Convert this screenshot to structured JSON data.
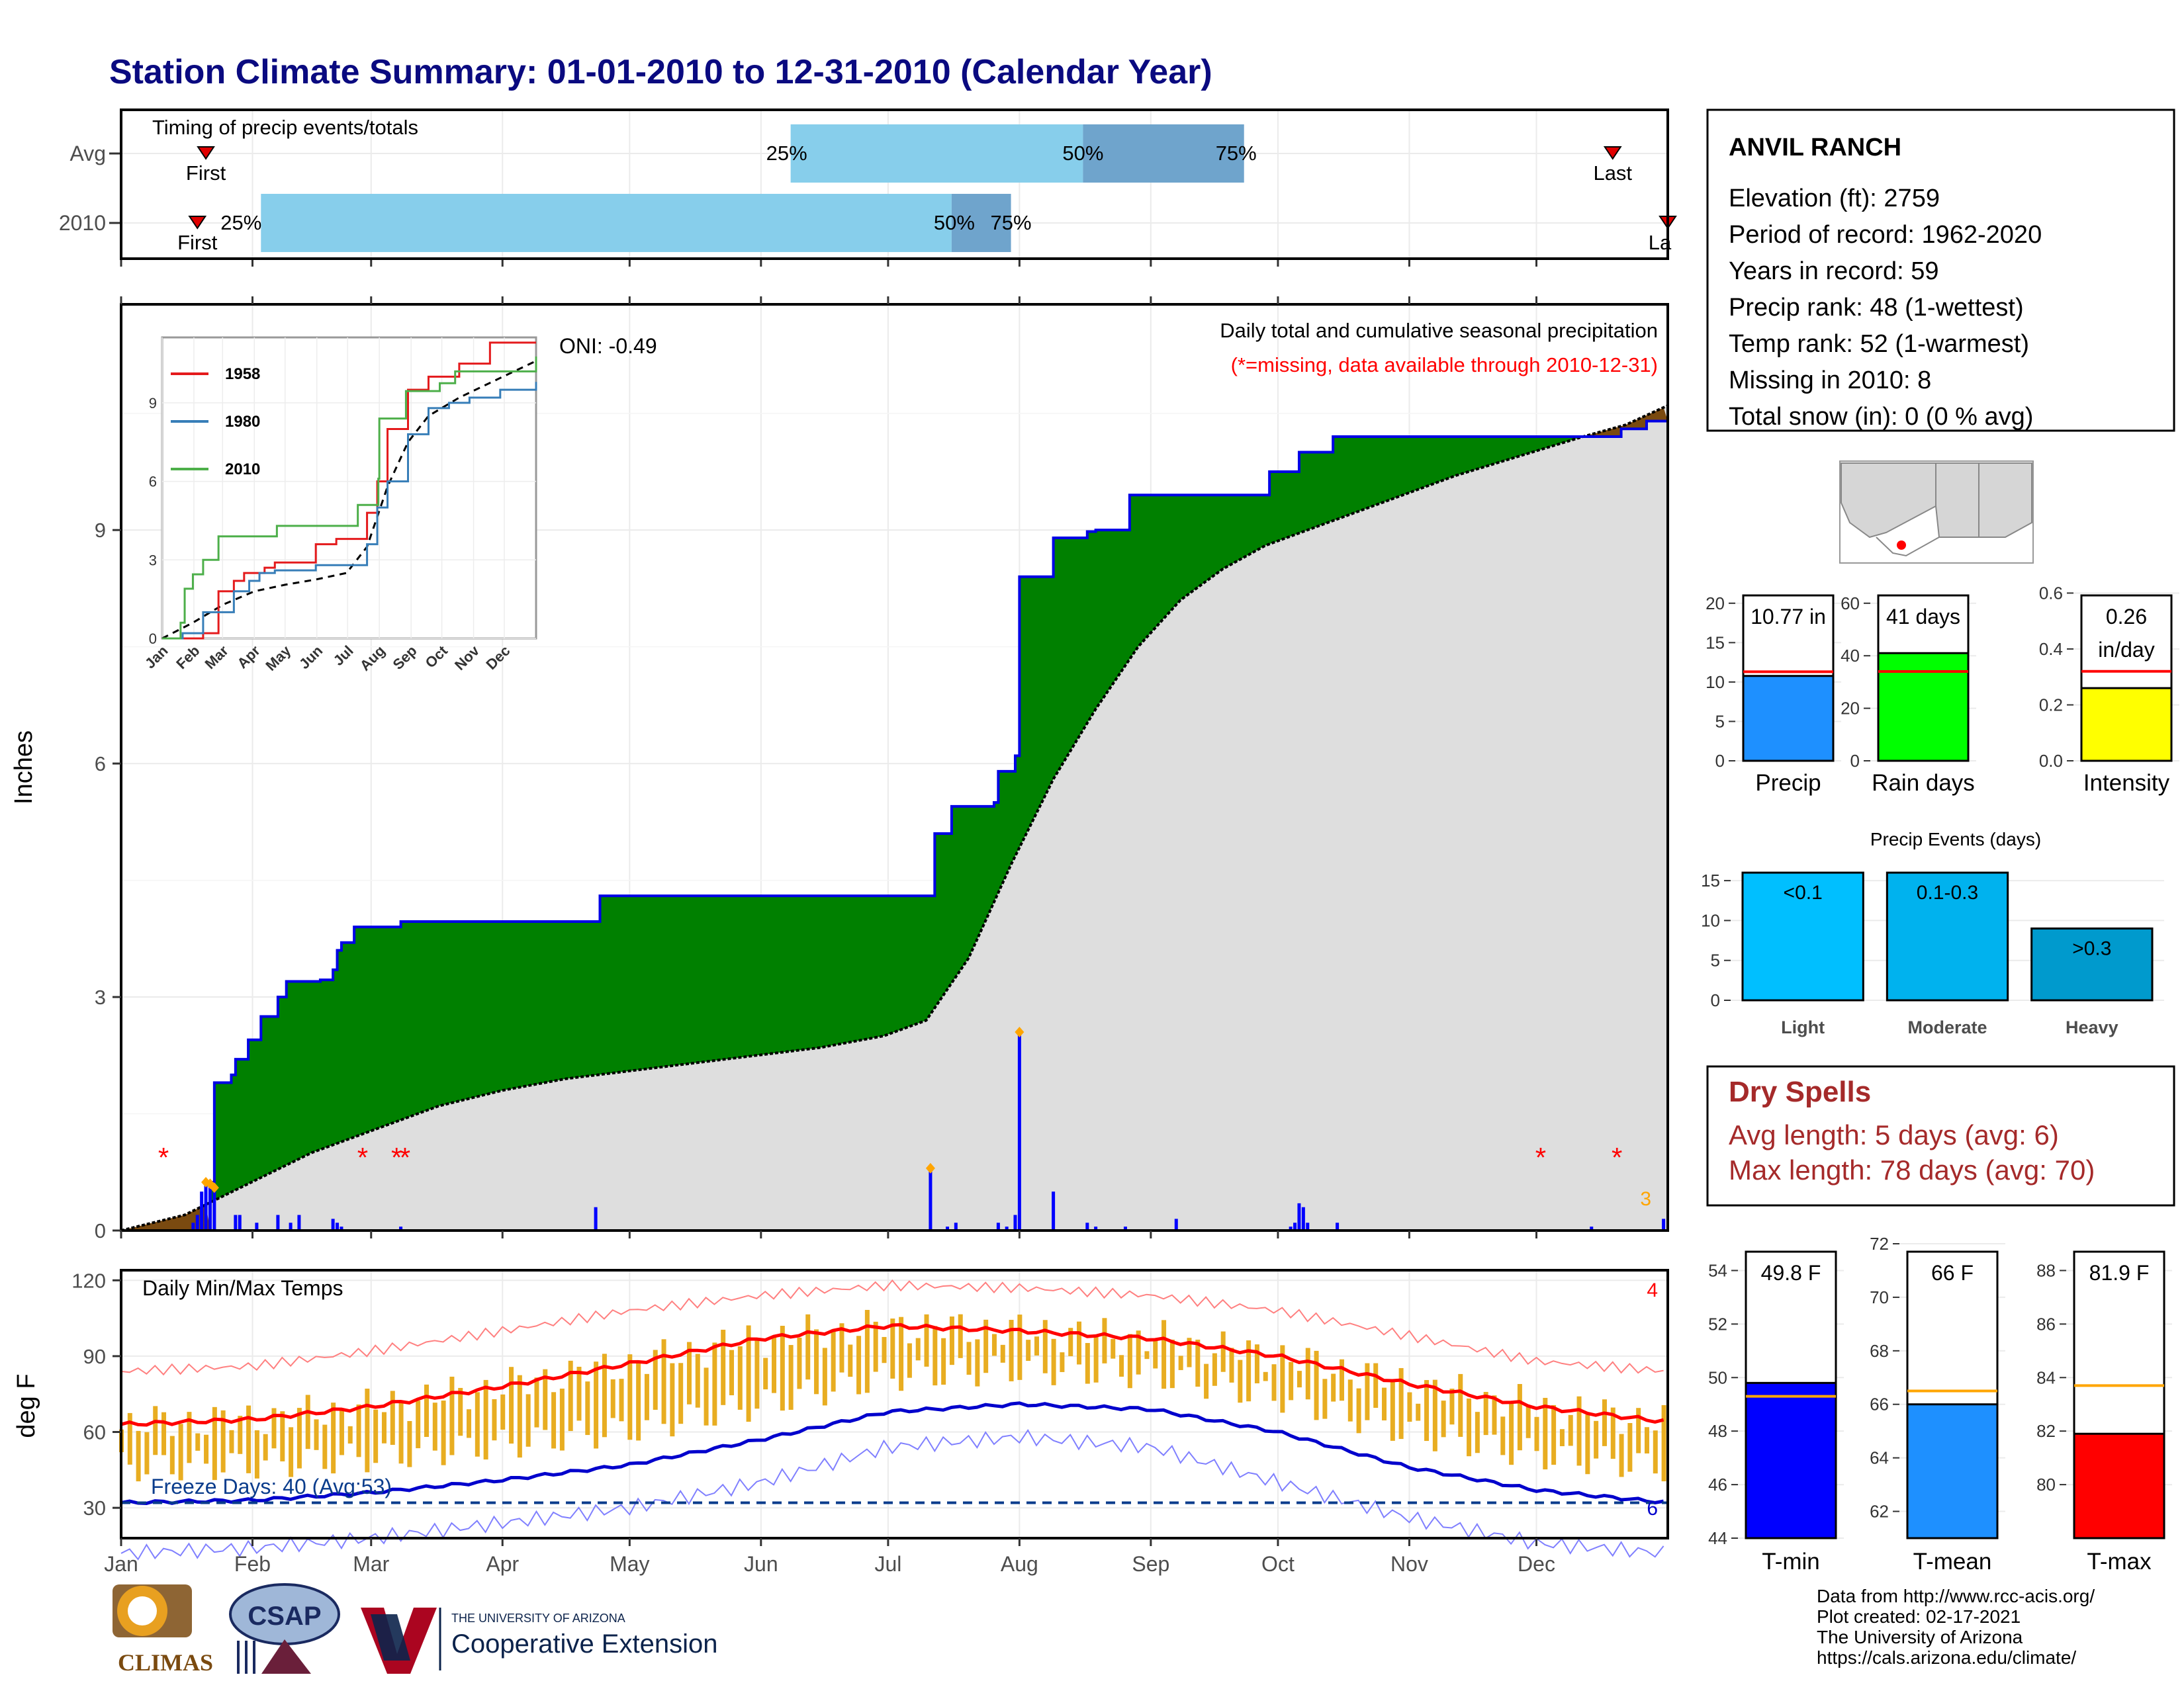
{
  "title": "Station Climate Summary: 01-01-2010 to 12-31-2010 (Calendar Year)",
  "colors": {
    "title": "#0a0a80",
    "cumulative_fill": "#008000",
    "cumulative_line": "#0000e6",
    "normal_fill": "#dedede",
    "deficit_fill": "#7a4a10",
    "daily_bar": "#0000ff",
    "timing_light": "#87ceeb",
    "timing_dark": "#6fa4cc",
    "temp_bar": "#e8ad21",
    "tmax_line": "#ff0000",
    "tmin_line": "#0000cc",
    "dry_spell_text": "#a52a2a"
  },
  "timing_panel": {
    "title": "Timing of precip events/totals",
    "rows": [
      {
        "label": "Avg",
        "first_doy": 20,
        "last_doy": 352,
        "p25_doy": 158,
        "p50_doy": 227,
        "p75_doy": 265,
        "labels": {
          "first": "First",
          "last": "Last",
          "p25": "25%",
          "p50": "50%",
          "p75": "75%"
        }
      },
      {
        "label": "2010",
        "first_doy": 18,
        "last_doy": 365,
        "p25_doy": 33,
        "p50_doy": 196,
        "p75_doy": 210,
        "labels": {
          "first": "First",
          "last": "La",
          "p25": "25%",
          "p50": "50%",
          "p75": "75%"
        }
      }
    ]
  },
  "precip_panel": {
    "ylabel": "Inches",
    "yticks": [
      0,
      3,
      6,
      9
    ],
    "ylim": [
      0,
      11.9
    ],
    "subtitle": "Daily total and cumulative seasonal precipitation",
    "missing_note": "(*=missing, data available through 2010-12-31)",
    "oni": "ONI: -0.49",
    "corner_count": "3",
    "cumulative_2010": [
      [
        0,
        0
      ],
      [
        18,
        0
      ],
      [
        21,
        0.62
      ],
      [
        22,
        1.9
      ],
      [
        26,
        2.0
      ],
      [
        27,
        2.2
      ],
      [
        30,
        2.45
      ],
      [
        33,
        2.75
      ],
      [
        37,
        3.0
      ],
      [
        39,
        3.2
      ],
      [
        47,
        3.22
      ],
      [
        50,
        3.35
      ],
      [
        51,
        3.6
      ],
      [
        52,
        3.7
      ],
      [
        55,
        3.9
      ],
      [
        62,
        3.9
      ],
      [
        66,
        3.97
      ],
      [
        112,
        3.97
      ],
      [
        113,
        4.3
      ],
      [
        191,
        4.3
      ],
      [
        192,
        5.1
      ],
      [
        196,
        5.45
      ],
      [
        206,
        5.5
      ],
      [
        207,
        5.9
      ],
      [
        211,
        6.1
      ],
      [
        212,
        8.4
      ],
      [
        219,
        8.4
      ],
      [
        220,
        8.9
      ],
      [
        228,
        8.98
      ],
      [
        230,
        9.0
      ],
      [
        237,
        9.0
      ],
      [
        238,
        9.45
      ],
      [
        270,
        9.45
      ],
      [
        271,
        9.75
      ],
      [
        278,
        10.0
      ],
      [
        286,
        10.2
      ],
      [
        350,
        10.2
      ],
      [
        354,
        10.3
      ],
      [
        360,
        10.4
      ],
      [
        365,
        10.77
      ]
    ],
    "normal_cumulative": [
      [
        0,
        0
      ],
      [
        15,
        0.2
      ],
      [
        30,
        0.6
      ],
      [
        45,
        1.0
      ],
      [
        60,
        1.3
      ],
      [
        75,
        1.6
      ],
      [
        90,
        1.8
      ],
      [
        105,
        1.95
      ],
      [
        120,
        2.05
      ],
      [
        135,
        2.15
      ],
      [
        150,
        2.25
      ],
      [
        165,
        2.35
      ],
      [
        180,
        2.5
      ],
      [
        190,
        2.7
      ],
      [
        200,
        3.5
      ],
      [
        210,
        4.7
      ],
      [
        220,
        5.8
      ],
      [
        230,
        6.7
      ],
      [
        240,
        7.5
      ],
      [
        250,
        8.1
      ],
      [
        260,
        8.5
      ],
      [
        270,
        8.8
      ],
      [
        285,
        9.1
      ],
      [
        300,
        9.4
      ],
      [
        315,
        9.7
      ],
      [
        330,
        9.95
      ],
      [
        345,
        10.2
      ],
      [
        355,
        10.35
      ],
      [
        365,
        10.6
      ]
    ],
    "daily_bars": [
      [
        17,
        0.1
      ],
      [
        18,
        0.2
      ],
      [
        19,
        0.5
      ],
      [
        20,
        0.62
      ],
      [
        21,
        0.6
      ],
      [
        22,
        0.55
      ],
      [
        27,
        0.2
      ],
      [
        28,
        0.2
      ],
      [
        32,
        0.1
      ],
      [
        37,
        0.2
      ],
      [
        40,
        0.1
      ],
      [
        42,
        0.2
      ],
      [
        50,
        0.15
      ],
      [
        51,
        0.1
      ],
      [
        52,
        0.05
      ],
      [
        66,
        0.05
      ],
      [
        112,
        0.3
      ],
      [
        191,
        0.8
      ],
      [
        195,
        0.05
      ],
      [
        197,
        0.1
      ],
      [
        207,
        0.1
      ],
      [
        209,
        0.05
      ],
      [
        211,
        0.2
      ],
      [
        212,
        2.55
      ],
      [
        220,
        0.5
      ],
      [
        228,
        0.1
      ],
      [
        230,
        0.05
      ],
      [
        237,
        0.05
      ],
      [
        249,
        0.15
      ],
      [
        276,
        0.05
      ],
      [
        277,
        0.1
      ],
      [
        278,
        0.35
      ],
      [
        279,
        0.3
      ],
      [
        280,
        0.1
      ],
      [
        287,
        0.1
      ],
      [
        347,
        0.05
      ],
      [
        364,
        0.15
      ]
    ],
    "missing_days": [
      10,
      57,
      65,
      67,
      335,
      353
    ]
  },
  "inset": {
    "legend": [
      "1958",
      "1980",
      "2010"
    ],
    "series_colors": [
      "#e41a1c",
      "#377eb8",
      "#4daf4a"
    ],
    "yticks": [
      0,
      3,
      6,
      9
    ],
    "xticks": [
      "Jan",
      "Feb",
      "Mar",
      "Apr",
      "May",
      "Jun",
      "Jul",
      "Aug",
      "Sep",
      "Oct",
      "Nov",
      "Dec"
    ],
    "series": [
      {
        "name": "1958",
        "points": [
          [
            0,
            0
          ],
          [
            40,
            0.2
          ],
          [
            55,
            1.8
          ],
          [
            70,
            2.2
          ],
          [
            80,
            2.5
          ],
          [
            100,
            2.7
          ],
          [
            110,
            2.9
          ],
          [
            150,
            3.6
          ],
          [
            170,
            3.8
          ],
          [
            190,
            3.8
          ],
          [
            200,
            4.8
          ],
          [
            210,
            6.0
          ],
          [
            220,
            8.0
          ],
          [
            240,
            9.5
          ],
          [
            260,
            10.0
          ],
          [
            290,
            10.5
          ],
          [
            320,
            11.3
          ],
          [
            365,
            11.3
          ]
        ]
      },
      {
        "name": "1980",
        "points": [
          [
            0,
            0
          ],
          [
            20,
            0.2
          ],
          [
            40,
            1.0
          ],
          [
            70,
            1.8
          ],
          [
            85,
            2.2
          ],
          [
            95,
            2.5
          ],
          [
            110,
            2.6
          ],
          [
            150,
            2.8
          ],
          [
            190,
            2.8
          ],
          [
            200,
            3.6
          ],
          [
            210,
            5.0
          ],
          [
            220,
            6.0
          ],
          [
            240,
            7.8
          ],
          [
            260,
            8.8
          ],
          [
            280,
            9.0
          ],
          [
            300,
            9.2
          ],
          [
            330,
            9.5
          ],
          [
            365,
            9.8
          ]
        ]
      },
      {
        "name": "2010",
        "points": [
          [
            0,
            0
          ],
          [
            18,
            0.6
          ],
          [
            22,
            1.9
          ],
          [
            30,
            2.45
          ],
          [
            40,
            3.0
          ],
          [
            55,
            3.9
          ],
          [
            112,
            4.3
          ],
          [
            191,
            5.1
          ],
          [
            211,
            6.1
          ],
          [
            212,
            8.4
          ],
          [
            238,
            9.45
          ],
          [
            271,
            9.75
          ],
          [
            286,
            10.2
          ],
          [
            350,
            10.2
          ],
          [
            365,
            10.77
          ]
        ]
      }
    ],
    "normal": [
      [
        0,
        0
      ],
      [
        30,
        0.6
      ],
      [
        60,
        1.3
      ],
      [
        90,
        1.8
      ],
      [
        120,
        2.05
      ],
      [
        150,
        2.25
      ],
      [
        180,
        2.5
      ],
      [
        200,
        3.5
      ],
      [
        220,
        5.8
      ],
      [
        240,
        7.5
      ],
      [
        260,
        8.5
      ],
      [
        290,
        9.2
      ],
      [
        330,
        9.95
      ],
      [
        365,
        10.6
      ]
    ]
  },
  "temp_panel": {
    "title": "Daily Min/Max Temps",
    "ylabel": "deg F",
    "yticks": [
      30,
      60,
      90,
      120
    ],
    "ylim": [
      18,
      124
    ],
    "freeze_days": "Freeze Days: 40 (Avg:53)",
    "freeze_line": 32,
    "count_high": "4",
    "count_low": "6",
    "normal_max": [
      [
        0,
        63
      ],
      [
        31,
        65
      ],
      [
        59,
        70
      ],
      [
        90,
        78
      ],
      [
        120,
        87
      ],
      [
        151,
        97
      ],
      [
        181,
        102
      ],
      [
        212,
        100
      ],
      [
        243,
        97
      ],
      [
        273,
        90
      ],
      [
        304,
        79
      ],
      [
        334,
        70
      ],
      [
        365,
        64
      ]
    ],
    "normal_min": [
      [
        0,
        32
      ],
      [
        31,
        33
      ],
      [
        59,
        36
      ],
      [
        90,
        41
      ],
      [
        120,
        47
      ],
      [
        151,
        57
      ],
      [
        181,
        68
      ],
      [
        212,
        71
      ],
      [
        243,
        69
      ],
      [
        273,
        60
      ],
      [
        304,
        46
      ],
      [
        334,
        37
      ],
      [
        365,
        32
      ]
    ],
    "record_max": [
      [
        0,
        84
      ],
      [
        31,
        86
      ],
      [
        59,
        92
      ],
      [
        90,
        100
      ],
      [
        120,
        108
      ],
      [
        151,
        114
      ],
      [
        181,
        118
      ],
      [
        212,
        117
      ],
      [
        243,
        114
      ],
      [
        273,
        108
      ],
      [
        304,
        98
      ],
      [
        334,
        88
      ],
      [
        365,
        84
      ]
    ],
    "record_min": [
      [
        0,
        12
      ],
      [
        31,
        14
      ],
      [
        59,
        18
      ],
      [
        90,
        24
      ],
      [
        120,
        30
      ],
      [
        151,
        40
      ],
      [
        181,
        54
      ],
      [
        212,
        58
      ],
      [
        243,
        54
      ],
      [
        273,
        40
      ],
      [
        304,
        26
      ],
      [
        334,
        16
      ],
      [
        365,
        12
      ]
    ],
    "month_labels": [
      "Jan",
      "Feb",
      "Mar",
      "Apr",
      "May",
      "Jun",
      "Jul",
      "Aug",
      "Sep",
      "Oct",
      "Nov",
      "Dec"
    ]
  },
  "station_box": {
    "name": "ANVIL RANCH",
    "lines": [
      "Elevation (ft): 2759",
      "Period of record: 1962-2020",
      "Years in record: 59",
      "Precip rank: 48 (1-wettest)",
      "Temp rank: 52 (1-warmest)",
      "Missing in 2010: 8",
      "Total snow (in): 0 (0 % avg)"
    ]
  },
  "summary_bars": [
    {
      "label": "Precip",
      "value_text": "10.77 in",
      "value": 10.77,
      "avg": 11.3,
      "ylim": [
        0,
        22
      ],
      "yticks": [
        0,
        5,
        10,
        15,
        20
      ],
      "color": "#1e90ff"
    },
    {
      "label": "Rain days",
      "value_text": "41 days",
      "value": 41,
      "avg": 34,
      "ylim": [
        0,
        66
      ],
      "yticks": [
        0,
        20,
        40,
        60
      ],
      "color": "#00ff00"
    },
    {
      "label": "Intensity",
      "value_text": [
        "0.26",
        "in/day"
      ],
      "value": 0.26,
      "avg": 0.32,
      "ylim": [
        0,
        0.62
      ],
      "yticks": [
        0.0,
        0.2,
        0.4,
        0.6
      ],
      "color": "#ffff00"
    }
  ],
  "events_chart": {
    "title": "Precip Events (days)",
    "categories": [
      "Light",
      "Moderate",
      "Heavy"
    ],
    "bin_labels": [
      "<0.1",
      "0.1-0.3",
      ">0.3"
    ],
    "values": [
      16,
      16,
      9
    ],
    "yticks": [
      0,
      5,
      10,
      15
    ],
    "ylim": [
      0,
      17
    ],
    "colors": [
      "#00bfff",
      "#00b2ee",
      "#009acd"
    ]
  },
  "dry_spells": {
    "title": "Dry Spells",
    "avg_line": "Avg length: 5 days (avg: 6)",
    "max_line": "Max length: 78 days (avg: 70)"
  },
  "temp_bars": [
    {
      "label": "T-min",
      "value_text": "49.8 F",
      "value": 49.8,
      "avg": 49.3,
      "ylim": [
        44,
        55
      ],
      "yticks": [
        44,
        46,
        48,
        50,
        52,
        54
      ],
      "color": "#0000ff"
    },
    {
      "label": "T-mean",
      "value_text": "66 F",
      "value": 66.0,
      "avg": 66.5,
      "ylim": [
        61,
        72
      ],
      "yticks": [
        62,
        64,
        66,
        68,
        70,
        72
      ],
      "color": "#1e90ff"
    },
    {
      "label": "T-max",
      "value_text": "81.9 F",
      "value": 81.9,
      "avg": 83.7,
      "ylim": [
        78,
        89
      ],
      "yticks": [
        80,
        82,
        84,
        86,
        88
      ],
      "color": "#ff0000"
    }
  ],
  "footer": {
    "lines": [
      "Data from http://www.rcc-acis.org/",
      "Plot created: 02-17-2021",
      "The University of Arizona",
      "https://cals.arizona.edu/climate/"
    ]
  },
  "logos": {
    "climas": "CLIMAS",
    "csap": "CSAP",
    "ua_small": "THE UNIVERSITY OF ARIZONA",
    "ua_big": "Cooperative Extension"
  }
}
